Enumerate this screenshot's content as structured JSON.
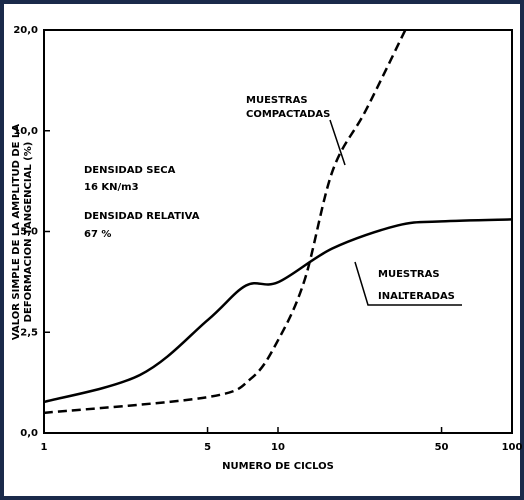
{
  "chart_data": {
    "type": "line",
    "xlabel": "NUMERO DE CICLOS",
    "ylabel": [
      "VALOR SIMPLE DE LA AMPLITUD DE LA",
      "DEFORMACION TANGENCIAL (%)"
    ],
    "xscale": "log",
    "yscale": "piecewise",
    "xlim": [
      1,
      100
    ],
    "xticks": [
      1,
      5,
      10,
      50,
      100
    ],
    "ylim": [
      0,
      20
    ],
    "yticks": [
      {
        "value": 0,
        "label": "0,0"
      },
      {
        "value": 2.5,
        "label": "2,5"
      },
      {
        "value": 5,
        "label": "5,0"
      },
      {
        "value": 10,
        "label": "10,0"
      },
      {
        "value": 20,
        "label": "20,0"
      }
    ],
    "series": [
      {
        "name": "MUESTRAS INALTERADAS",
        "color": "#000000",
        "dash": false,
        "x": [
          1,
          2.57,
          5,
          7.3,
          10,
          17.1,
          32.5,
          50,
          100
        ],
        "values": [
          0.77,
          1.44,
          2.8,
          3.66,
          3.74,
          4.58,
          5.3,
          5.5,
          5.6
        ]
      },
      {
        "name": "MUESTRAS COMPACTADAS",
        "color": "#000000",
        "dash": true,
        "x": [
          1,
          5,
          7.7,
          10,
          13,
          17.1,
          23.7,
          35
        ],
        "values": [
          0.5,
          0.89,
          1.36,
          2.3,
          3.8,
          8.0,
          12,
          20
        ]
      }
    ],
    "annotations": [
      "MUESTRAS",
      "COMPACTADAS",
      "MUESTRAS",
      "INALTERADAS",
      "DENSIDAD SECA",
      "16 KN/m3",
      "DENSIDAD RELATIVA",
      "67 %"
    ]
  }
}
